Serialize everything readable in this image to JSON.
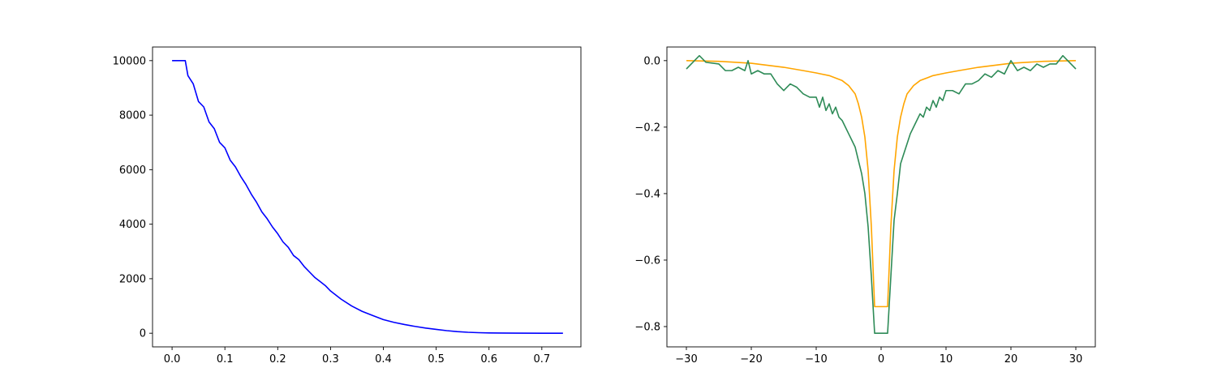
{
  "chart_data": [
    {
      "type": "line",
      "title": "",
      "xlabel": "",
      "ylabel": "",
      "xlim": [
        -0.037,
        0.774
      ],
      "ylim": [
        -500,
        10500
      ],
      "x_ticks": [
        0.0,
        0.1,
        0.2,
        0.3,
        0.4,
        0.5,
        0.6,
        0.7
      ],
      "x_tick_labels": [
        "0.0",
        "0.1",
        "0.2",
        "0.3",
        "0.4",
        "0.5",
        "0.6",
        "0.7"
      ],
      "y_ticks": [
        0,
        2000,
        4000,
        6000,
        8000,
        10000
      ],
      "y_tick_labels": [
        "0",
        "2000",
        "4000",
        "6000",
        "8000",
        "10000"
      ],
      "grid": false,
      "series": [
        {
          "color": "#0000ff",
          "x": [
            0.0,
            0.025,
            0.03,
            0.04,
            0.05,
            0.06,
            0.07,
            0.08,
            0.09,
            0.1,
            0.11,
            0.12,
            0.13,
            0.14,
            0.15,
            0.16,
            0.17,
            0.18,
            0.19,
            0.2,
            0.21,
            0.22,
            0.23,
            0.24,
            0.25,
            0.26,
            0.27,
            0.28,
            0.29,
            0.3,
            0.32,
            0.34,
            0.36,
            0.38,
            0.4,
            0.42,
            0.44,
            0.46,
            0.48,
            0.5,
            0.52,
            0.54,
            0.56,
            0.58,
            0.6,
            0.62,
            0.65,
            0.7,
            0.74
          ],
          "y": [
            10000,
            10000,
            9450,
            9150,
            8500,
            8300,
            7750,
            7500,
            7000,
            6800,
            6350,
            6100,
            5750,
            5450,
            5100,
            4800,
            4450,
            4200,
            3900,
            3650,
            3350,
            3150,
            2850,
            2700,
            2450,
            2250,
            2050,
            1900,
            1750,
            1550,
            1250,
            1000,
            800,
            650,
            500,
            400,
            320,
            250,
            190,
            140,
            95,
            60,
            35,
            20,
            12,
            6,
            3,
            1,
            0
          ]
        }
      ]
    },
    {
      "type": "line",
      "title": "",
      "xlabel": "",
      "ylabel": "",
      "xlim": [
        -33,
        33
      ],
      "ylim": [
        -0.861,
        0.041
      ],
      "x_ticks": [
        -30,
        -20,
        -10,
        0,
        10,
        20,
        30
      ],
      "x_tick_labels": [
        "−30",
        "−20",
        "−10",
        "0",
        "10",
        "20",
        "30"
      ],
      "y_ticks": [
        0.0,
        -0.2,
        -0.4,
        -0.6,
        -0.8
      ],
      "y_tick_labels": [
        "0.0",
        "−0.2",
        "−0.4",
        "−0.6",
        "−0.8"
      ],
      "grid": false,
      "series": [
        {
          "color": "#ffa500",
          "x": [
            -30,
            -25,
            -20,
            -15,
            -12,
            -10,
            -8,
            -6,
            -5,
            -4,
            -3.5,
            -3,
            -2.5,
            -2,
            -1.5,
            -1,
            1,
            1.5,
            2,
            2.5,
            3,
            3.5,
            4,
            5,
            6,
            8,
            10,
            12,
            15,
            20,
            25,
            30
          ],
          "y": [
            0.0,
            -0.002,
            -0.008,
            -0.02,
            -0.03,
            -0.037,
            -0.045,
            -0.06,
            -0.075,
            -0.1,
            -0.13,
            -0.17,
            -0.23,
            -0.33,
            -0.5,
            -0.74,
            -0.74,
            -0.5,
            -0.33,
            -0.23,
            -0.17,
            -0.13,
            -0.1,
            -0.075,
            -0.06,
            -0.045,
            -0.037,
            -0.03,
            -0.02,
            -0.008,
            -0.002,
            0.0
          ]
        },
        {
          "color": "#2e8b57",
          "x": [
            -30,
            -28,
            -27,
            -25,
            -24,
            -23,
            -22,
            -21,
            -20.5,
            -20,
            -19,
            -18,
            -17,
            -16,
            -15,
            -14,
            -13,
            -12,
            -11,
            -10,
            -9.5,
            -9,
            -8.5,
            -8,
            -7.5,
            -7,
            -6.5,
            -6,
            -5.5,
            -5,
            -4.5,
            -4,
            -3.5,
            -3,
            -2.5,
            -2,
            -1.5,
            -1,
            1,
            1.5,
            2,
            2.5,
            3,
            3.5,
            4,
            4.5,
            5,
            5.5,
            6,
            6.5,
            7,
            7.5,
            8,
            8.5,
            9,
            9.5,
            10,
            11,
            12,
            13,
            14,
            15,
            16,
            17,
            18,
            19,
            20,
            21,
            22,
            23,
            24,
            25,
            26,
            27,
            28,
            30
          ],
          "y": [
            -0.025,
            0.015,
            -0.005,
            -0.01,
            -0.03,
            -0.03,
            -0.02,
            -0.03,
            0.0,
            -0.04,
            -0.03,
            -0.04,
            -0.04,
            -0.07,
            -0.09,
            -0.07,
            -0.08,
            -0.1,
            -0.11,
            -0.11,
            -0.14,
            -0.11,
            -0.15,
            -0.13,
            -0.16,
            -0.14,
            -0.17,
            -0.18,
            -0.2,
            -0.22,
            -0.24,
            -0.26,
            -0.3,
            -0.34,
            -0.4,
            -0.5,
            -0.65,
            -0.82,
            -0.82,
            -0.65,
            -0.48,
            -0.4,
            -0.31,
            -0.28,
            -0.25,
            -0.22,
            -0.2,
            -0.18,
            -0.16,
            -0.17,
            -0.14,
            -0.15,
            -0.12,
            -0.14,
            -0.11,
            -0.12,
            -0.09,
            -0.09,
            -0.1,
            -0.07,
            -0.07,
            -0.06,
            -0.04,
            -0.05,
            -0.03,
            -0.04,
            0.0,
            -0.03,
            -0.02,
            -0.03,
            -0.01,
            -0.02,
            -0.01,
            -0.01,
            0.015,
            -0.025
          ]
        }
      ]
    }
  ]
}
